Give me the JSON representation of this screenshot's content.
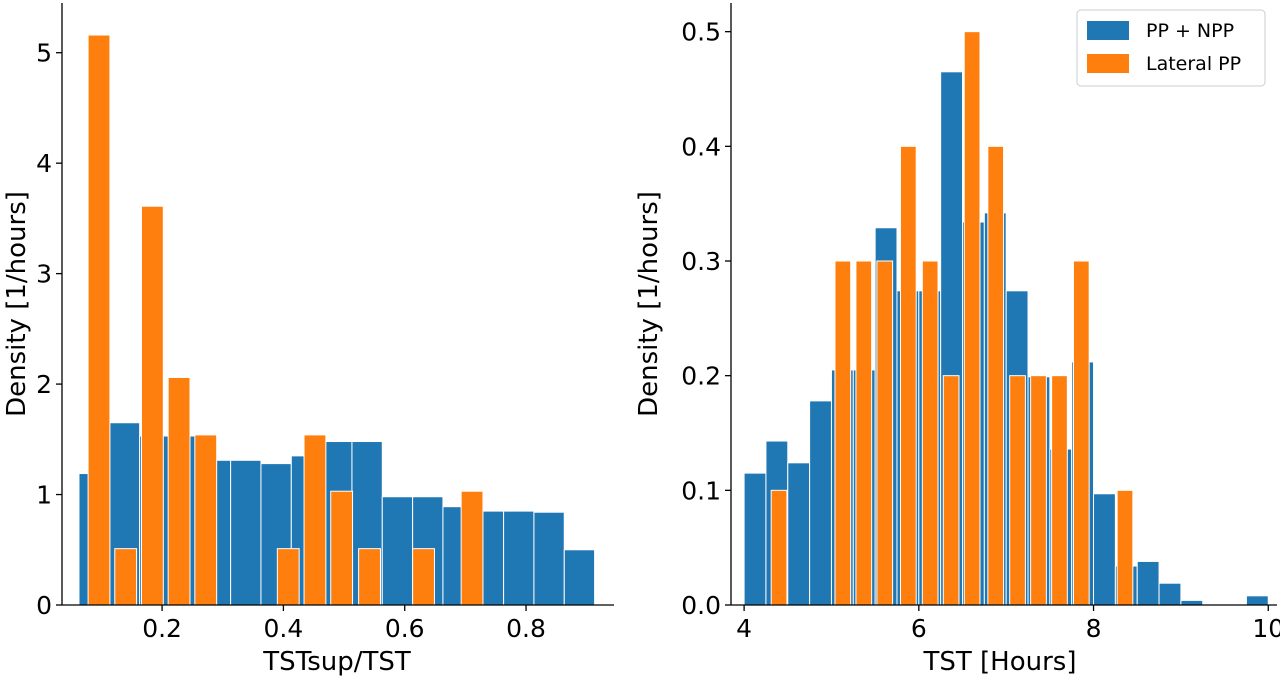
{
  "chart_data": [
    {
      "type": "bar",
      "subtype": "histogram",
      "xlabel": "TSTsup/TST",
      "ylabel": "Density [1/hours]",
      "xlim": [
        0.035,
        0.945
      ],
      "ylim": [
        0,
        5.45
      ],
      "xticks": [
        0.2,
        0.4,
        0.6,
        0.8
      ],
      "yticks": [
        0,
        1,
        2,
        3,
        4,
        5
      ],
      "legend": false,
      "series": [
        {
          "color": "#1f77b4",
          "bins": [
            {
              "x0": 0.063,
              "x1": 0.113,
              "y": 1.19
            },
            {
              "x0": 0.113,
              "x1": 0.163,
              "y": 1.65
            },
            {
              "x0": 0.163,
              "x1": 0.213,
              "y": 1.53
            },
            {
              "x0": 0.213,
              "x1": 0.263,
              "y": 1.53
            },
            {
              "x0": 0.263,
              "x1": 0.313,
              "y": 1.31
            },
            {
              "x0": 0.313,
              "x1": 0.363,
              "y": 1.31
            },
            {
              "x0": 0.363,
              "x1": 0.413,
              "y": 1.28
            },
            {
              "x0": 0.413,
              "x1": 0.463,
              "y": 1.35
            },
            {
              "x0": 0.463,
              "x1": 0.513,
              "y": 1.48
            },
            {
              "x0": 0.513,
              "x1": 0.563,
              "y": 1.48
            },
            {
              "x0": 0.563,
              "x1": 0.613,
              "y": 0.98
            },
            {
              "x0": 0.613,
              "x1": 0.663,
              "y": 0.98
            },
            {
              "x0": 0.663,
              "x1": 0.713,
              "y": 0.89
            },
            {
              "x0": 0.713,
              "x1": 0.763,
              "y": 0.85
            },
            {
              "x0": 0.763,
              "x1": 0.813,
              "y": 0.85
            },
            {
              "x0": 0.813,
              "x1": 0.863,
              "y": 0.84
            },
            {
              "x0": 0.863,
              "x1": 0.913,
              "y": 0.5
            }
          ]
        },
        {
          "color": "#ff7f0e",
          "bins": [
            {
              "x0": 0.078,
              "x1": 0.114,
              "y": 5.16
            },
            {
              "x0": 0.122,
              "x1": 0.158,
              "y": 0.51
            },
            {
              "x0": 0.166,
              "x1": 0.202,
              "y": 3.61
            },
            {
              "x0": 0.21,
              "x1": 0.246,
              "y": 2.06
            },
            {
              "x0": 0.254,
              "x1": 0.29,
              "y": 1.54
            },
            {
              "x0": 0.39,
              "x1": 0.426,
              "y": 0.51
            },
            {
              "x0": 0.434,
              "x1": 0.47,
              "y": 1.54
            },
            {
              "x0": 0.478,
              "x1": 0.514,
              "y": 1.03
            },
            {
              "x0": 0.524,
              "x1": 0.56,
              "y": 0.51
            },
            {
              "x0": 0.613,
              "x1": 0.649,
              "y": 0.51
            },
            {
              "x0": 0.693,
              "x1": 0.729,
              "y": 1.03
            }
          ]
        }
      ]
    },
    {
      "type": "bar",
      "subtype": "histogram",
      "xlabel": "TST [Hours]",
      "ylabel": "Density [1/hours]",
      "xlim": [
        3.85,
        10.1
      ],
      "ylim": [
        0,
        0.525
      ],
      "xticks": [
        4,
        6,
        8,
        10
      ],
      "yticks": [
        0.0,
        0.1,
        0.2,
        0.3,
        0.4,
        0.5
      ],
      "legend": true,
      "legend_position": "top-right",
      "series": [
        {
          "name": "PP + NPP",
          "color": "#1f77b4",
          "bins": [
            {
              "x0": 4.0,
              "x1": 4.25,
              "y": 0.115
            },
            {
              "x0": 4.25,
              "x1": 4.5,
              "y": 0.143
            },
            {
              "x0": 4.5,
              "x1": 4.75,
              "y": 0.124
            },
            {
              "x0": 4.75,
              "x1": 5.0,
              "y": 0.178
            },
            {
              "x0": 5.0,
              "x1": 5.25,
              "y": 0.205
            },
            {
              "x0": 5.25,
              "x1": 5.5,
              "y": 0.205
            },
            {
              "x0": 5.5,
              "x1": 5.75,
              "y": 0.329
            },
            {
              "x0": 5.75,
              "x1": 6.0,
              "y": 0.274
            },
            {
              "x0": 6.0,
              "x1": 6.25,
              "y": 0.274
            },
            {
              "x0": 6.25,
              "x1": 6.5,
              "y": 0.465
            },
            {
              "x0": 6.5,
              "x1": 6.75,
              "y": 0.334
            },
            {
              "x0": 6.75,
              "x1": 7.0,
              "y": 0.342
            },
            {
              "x0": 7.0,
              "x1": 7.25,
              "y": 0.274
            },
            {
              "x0": 7.25,
              "x1": 7.5,
              "y": 0.199
            },
            {
              "x0": 7.5,
              "x1": 7.75,
              "y": 0.136
            },
            {
              "x0": 7.75,
              "x1": 8.0,
              "y": 0.212
            },
            {
              "x0": 8.0,
              "x1": 8.25,
              "y": 0.097
            },
            {
              "x0": 8.25,
              "x1": 8.5,
              "y": 0.034
            },
            {
              "x0": 8.5,
              "x1": 8.75,
              "y": 0.038
            },
            {
              "x0": 8.75,
              "x1": 9.0,
              "y": 0.019
            },
            {
              "x0": 9.0,
              "x1": 9.25,
              "y": 0.004
            },
            {
              "x0": 9.75,
              "x1": 10.0,
              "y": 0.008
            }
          ]
        },
        {
          "name": "Lateral PP",
          "color": "#ff7f0e",
          "bins": [
            {
              "x0": 4.31,
              "x1": 4.49,
              "y": 0.1
            },
            {
              "x0": 5.04,
              "x1": 5.22,
              "y": 0.3
            },
            {
              "x0": 5.28,
              "x1": 5.46,
              "y": 0.3
            },
            {
              "x0": 5.52,
              "x1": 5.7,
              "y": 0.3
            },
            {
              "x0": 5.79,
              "x1": 5.97,
              "y": 0.4
            },
            {
              "x0": 6.04,
              "x1": 6.22,
              "y": 0.3
            },
            {
              "x0": 6.28,
              "x1": 6.46,
              "y": 0.2
            },
            {
              "x0": 6.52,
              "x1": 6.7,
              "y": 0.5
            },
            {
              "x0": 6.79,
              "x1": 6.97,
              "y": 0.4
            },
            {
              "x0": 7.04,
              "x1": 7.22,
              "y": 0.2
            },
            {
              "x0": 7.28,
              "x1": 7.46,
              "y": 0.2
            },
            {
              "x0": 7.52,
              "x1": 7.7,
              "y": 0.2
            },
            {
              "x0": 7.77,
              "x1": 7.95,
              "y": 0.3
            },
            {
              "x0": 8.27,
              "x1": 8.45,
              "y": 0.1
            }
          ]
        }
      ]
    }
  ]
}
